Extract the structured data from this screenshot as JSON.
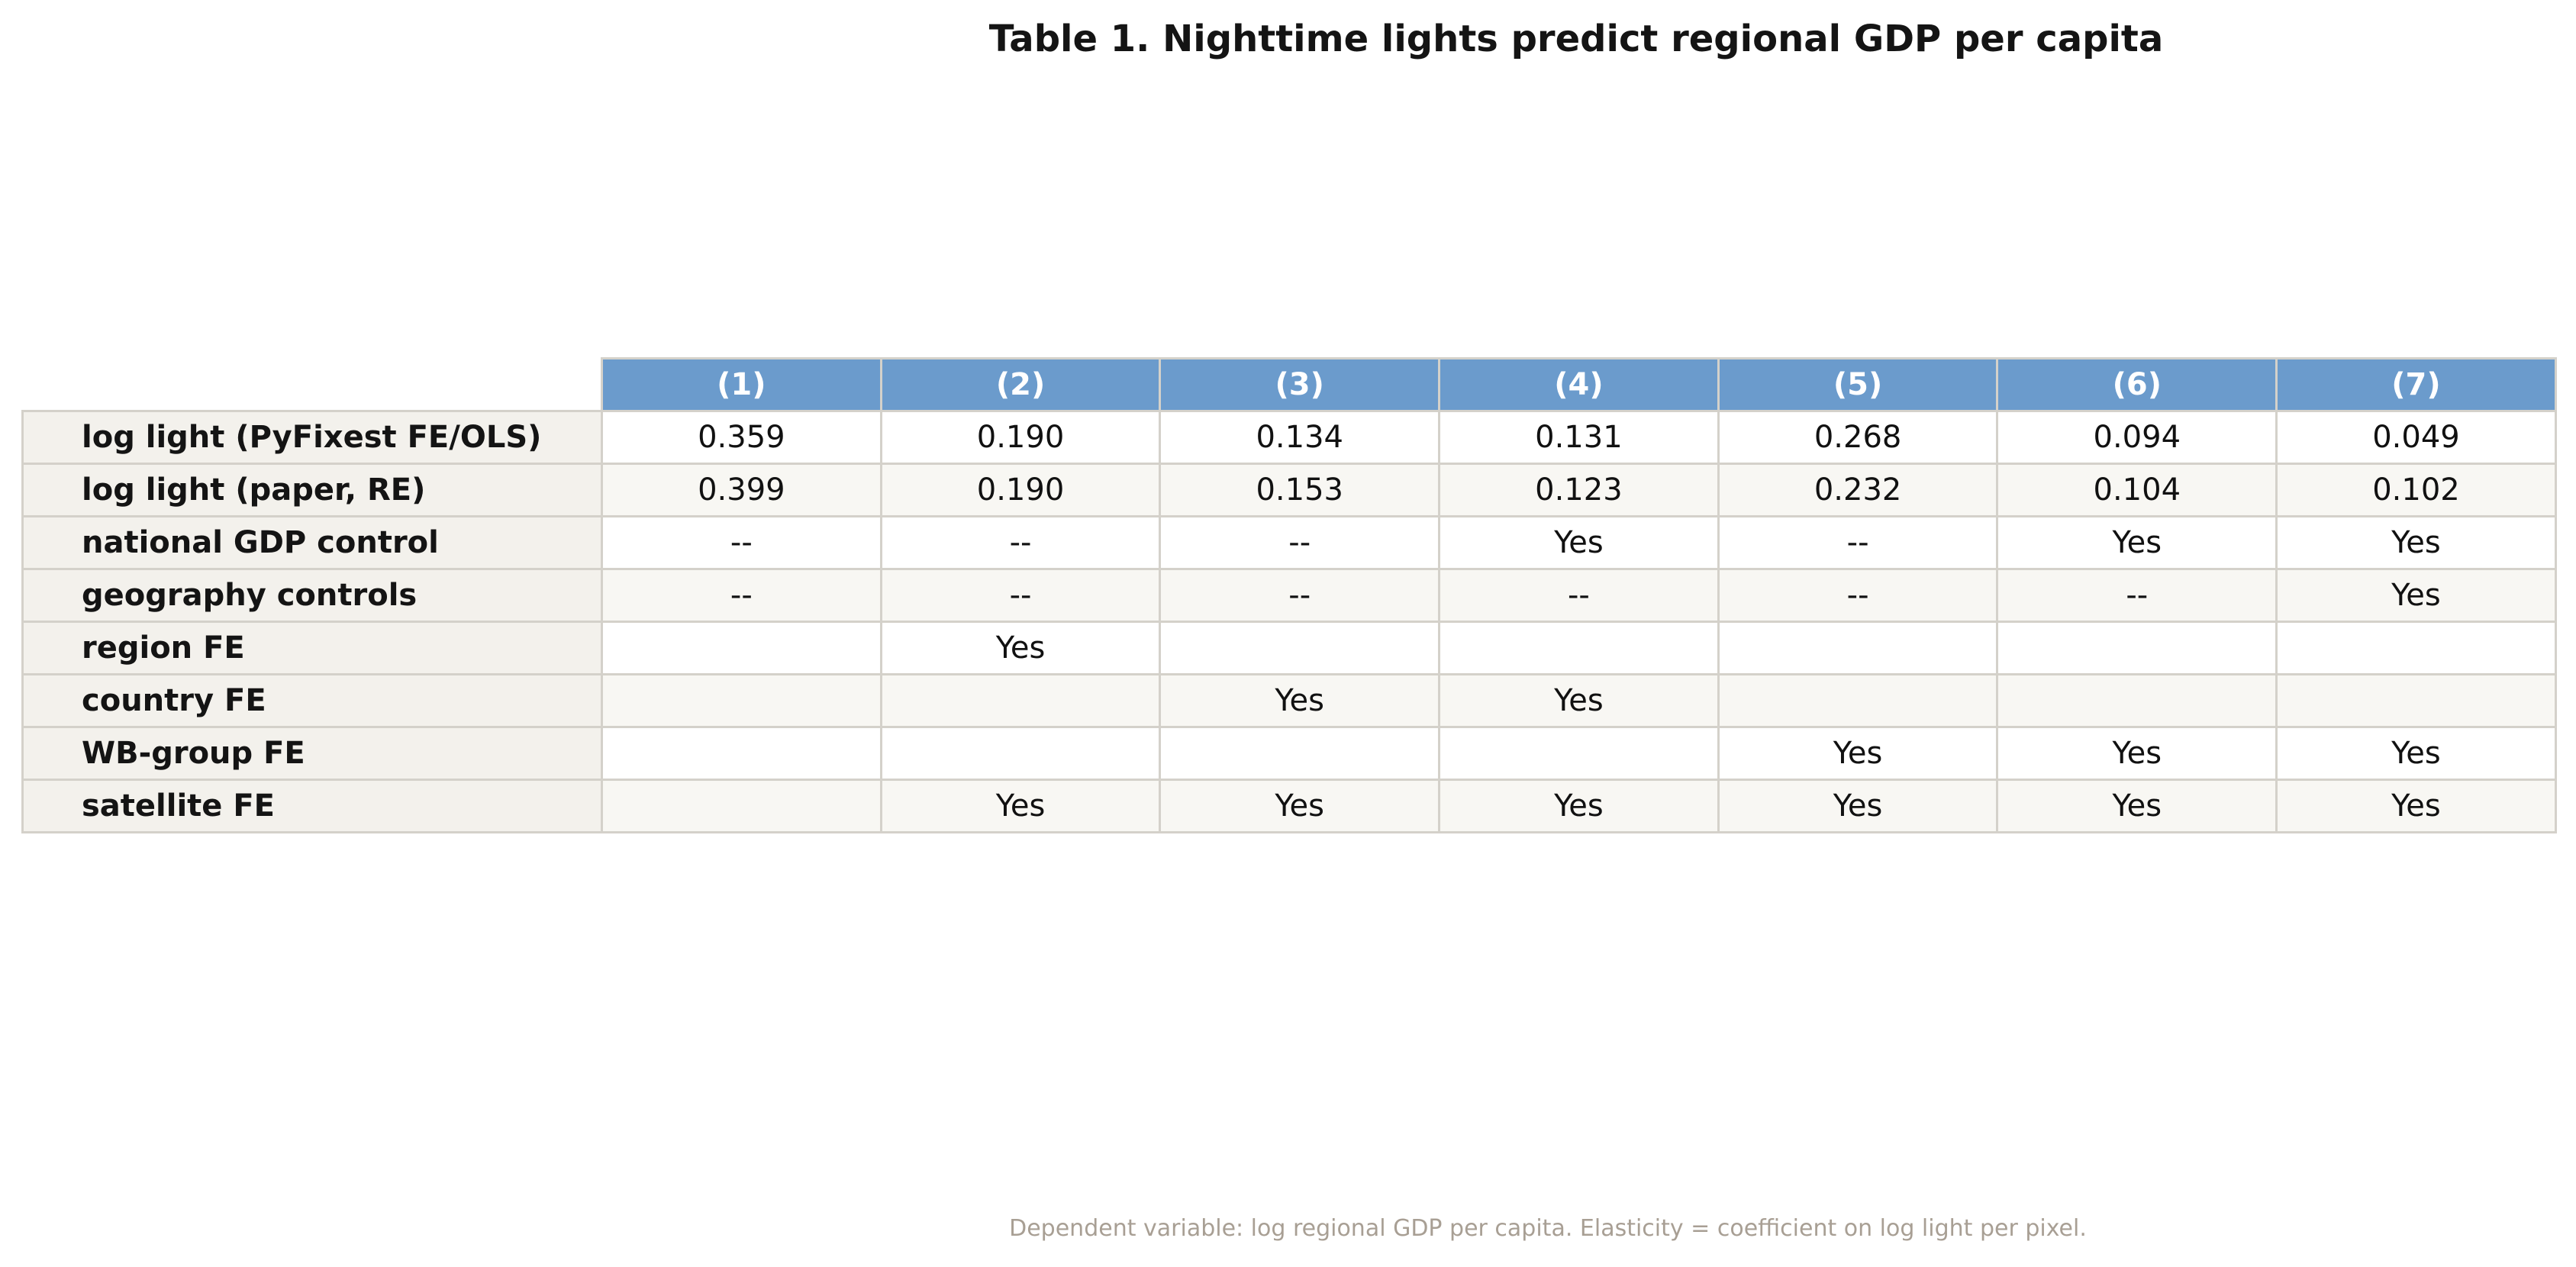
{
  "chart_data": {
    "type": "table",
    "title": "Table 1. Nighttime lights predict regional GDP per capita",
    "columns": [
      "(1)",
      "(2)",
      "(3)",
      "(4)",
      "(5)",
      "(6)",
      "(7)"
    ],
    "rows": [
      {
        "label": "log light (PyFixest FE/OLS)",
        "values": [
          "0.359",
          "0.190",
          "0.134",
          "0.131",
          "0.268",
          "0.094",
          "0.049"
        ]
      },
      {
        "label": "log light (paper, RE)",
        "values": [
          "0.399",
          "0.190",
          "0.153",
          "0.123",
          "0.232",
          "0.104",
          "0.102"
        ]
      },
      {
        "label": "national GDP control",
        "values": [
          "--",
          "--",
          "--",
          "Yes",
          "--",
          "Yes",
          "Yes"
        ]
      },
      {
        "label": "geography controls",
        "values": [
          "--",
          "--",
          "--",
          "--",
          "--",
          "--",
          "Yes"
        ]
      },
      {
        "label": "region FE",
        "values": [
          "",
          "Yes",
          "",
          "",
          "",
          "",
          ""
        ]
      },
      {
        "label": "country FE",
        "values": [
          "",
          "",
          "Yes",
          "Yes",
          "",
          "",
          ""
        ]
      },
      {
        "label": "WB-group FE",
        "values": [
          "",
          "",
          "",
          "",
          "Yes",
          "Yes",
          "Yes"
        ]
      },
      {
        "label": "satellite FE",
        "values": [
          "",
          "Yes",
          "Yes",
          "Yes",
          "Yes",
          "Yes",
          "Yes"
        ]
      }
    ],
    "footnote": "Dependent variable: log regional GDP per capita. Elasticity = coefficient on log light per pixel."
  },
  "colors": {
    "header_background": "#6b9bcc",
    "header_text": "#ffffff",
    "row_label_background": "#f3f1ec",
    "row_alt_background": "#f8f7f3",
    "grid_lines": "#d4d1ca",
    "footnote_text": "#a89f94"
  }
}
